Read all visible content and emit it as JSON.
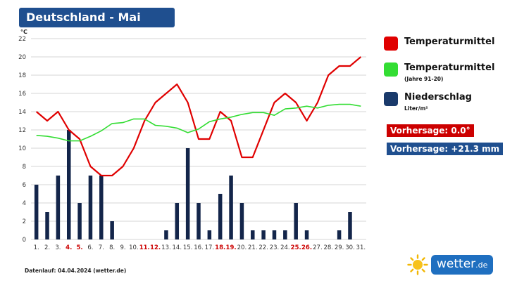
{
  "header": {
    "title": "Deutschland - Mai"
  },
  "legend": {
    "temp_mean": {
      "label": "Temperaturmittel",
      "color": "#e00000"
    },
    "temp_normal": {
      "label": "Temperaturmittel",
      "sub": "(Jahre 91-20)",
      "color": "#33dd33"
    },
    "precip": {
      "label": "Niederschlag",
      "sub": "Liter/m²",
      "color": "#1a3a6b"
    }
  },
  "forecasts": {
    "temp": {
      "text": "Vorhersage: 0.0°",
      "color": "#cc0000"
    },
    "precip": {
      "text": "Vorhersage: +21.3 mm",
      "color": "#1f4f8f"
    }
  },
  "footer": {
    "note": "Datenlauf: 04.04.2024 (wetter.de)"
  },
  "brand": {
    "name": "wetter",
    "tld": ".de",
    "icon": "sun-icon"
  },
  "chart_data": {
    "type": "bar+line",
    "unit_label": "°C",
    "ylim": [
      0,
      22
    ],
    "yticks": [
      0,
      2,
      4,
      6,
      8,
      10,
      12,
      14,
      16,
      18,
      20,
      22
    ],
    "grid": true,
    "categories": [
      "1.",
      "2.",
      "3.",
      "4.",
      "5.",
      "6.",
      "7.",
      "8.",
      "9.",
      "10.",
      "11.",
      "12.",
      "13.",
      "14.",
      "15.",
      "16.",
      "17.",
      "18.",
      "19.",
      "20.",
      "21.",
      "22.",
      "23.",
      "24.",
      "25.",
      "26.",
      "27.",
      "28.",
      "29.",
      "30.",
      "31."
    ],
    "highlight_days": [
      "4.",
      "5.",
      "11.",
      "12.",
      "18.",
      "19.",
      "25.",
      "26."
    ],
    "highlight_color": "#cc0000",
    "series": [
      {
        "key": "precip",
        "type": "bar",
        "color": "#13254a",
        "values": [
          6,
          3,
          7,
          12,
          4,
          7,
          7,
          2,
          0,
          0,
          0,
          0,
          1,
          4,
          10,
          4,
          1,
          5,
          7,
          4,
          1,
          1,
          1,
          1,
          4,
          1,
          0,
          0,
          1,
          3,
          0
        ]
      },
      {
        "key": "temp_mean",
        "type": "line",
        "color": "#e00000",
        "values": [
          14,
          13,
          14,
          12,
          11,
          8,
          7,
          7,
          8,
          10,
          13,
          15,
          16,
          17,
          15,
          11,
          11,
          14,
          13,
          9,
          9,
          12,
          15,
          16,
          15,
          13,
          15,
          18,
          19,
          19,
          20
        ]
      },
      {
        "key": "temp_normal",
        "type": "line",
        "color": "#33dd33",
        "values": [
          11.4,
          11.3,
          11.1,
          10.8,
          10.8,
          11.3,
          11.9,
          12.7,
          12.8,
          13.2,
          13.2,
          12.5,
          12.4,
          12.2,
          11.7,
          12.1,
          12.9,
          13.2,
          13.4,
          13.7,
          13.9,
          13.9,
          13.6,
          14.3,
          14.4,
          14.6,
          14.4,
          14.7,
          14.8,
          14.8,
          14.6
        ]
      }
    ]
  }
}
